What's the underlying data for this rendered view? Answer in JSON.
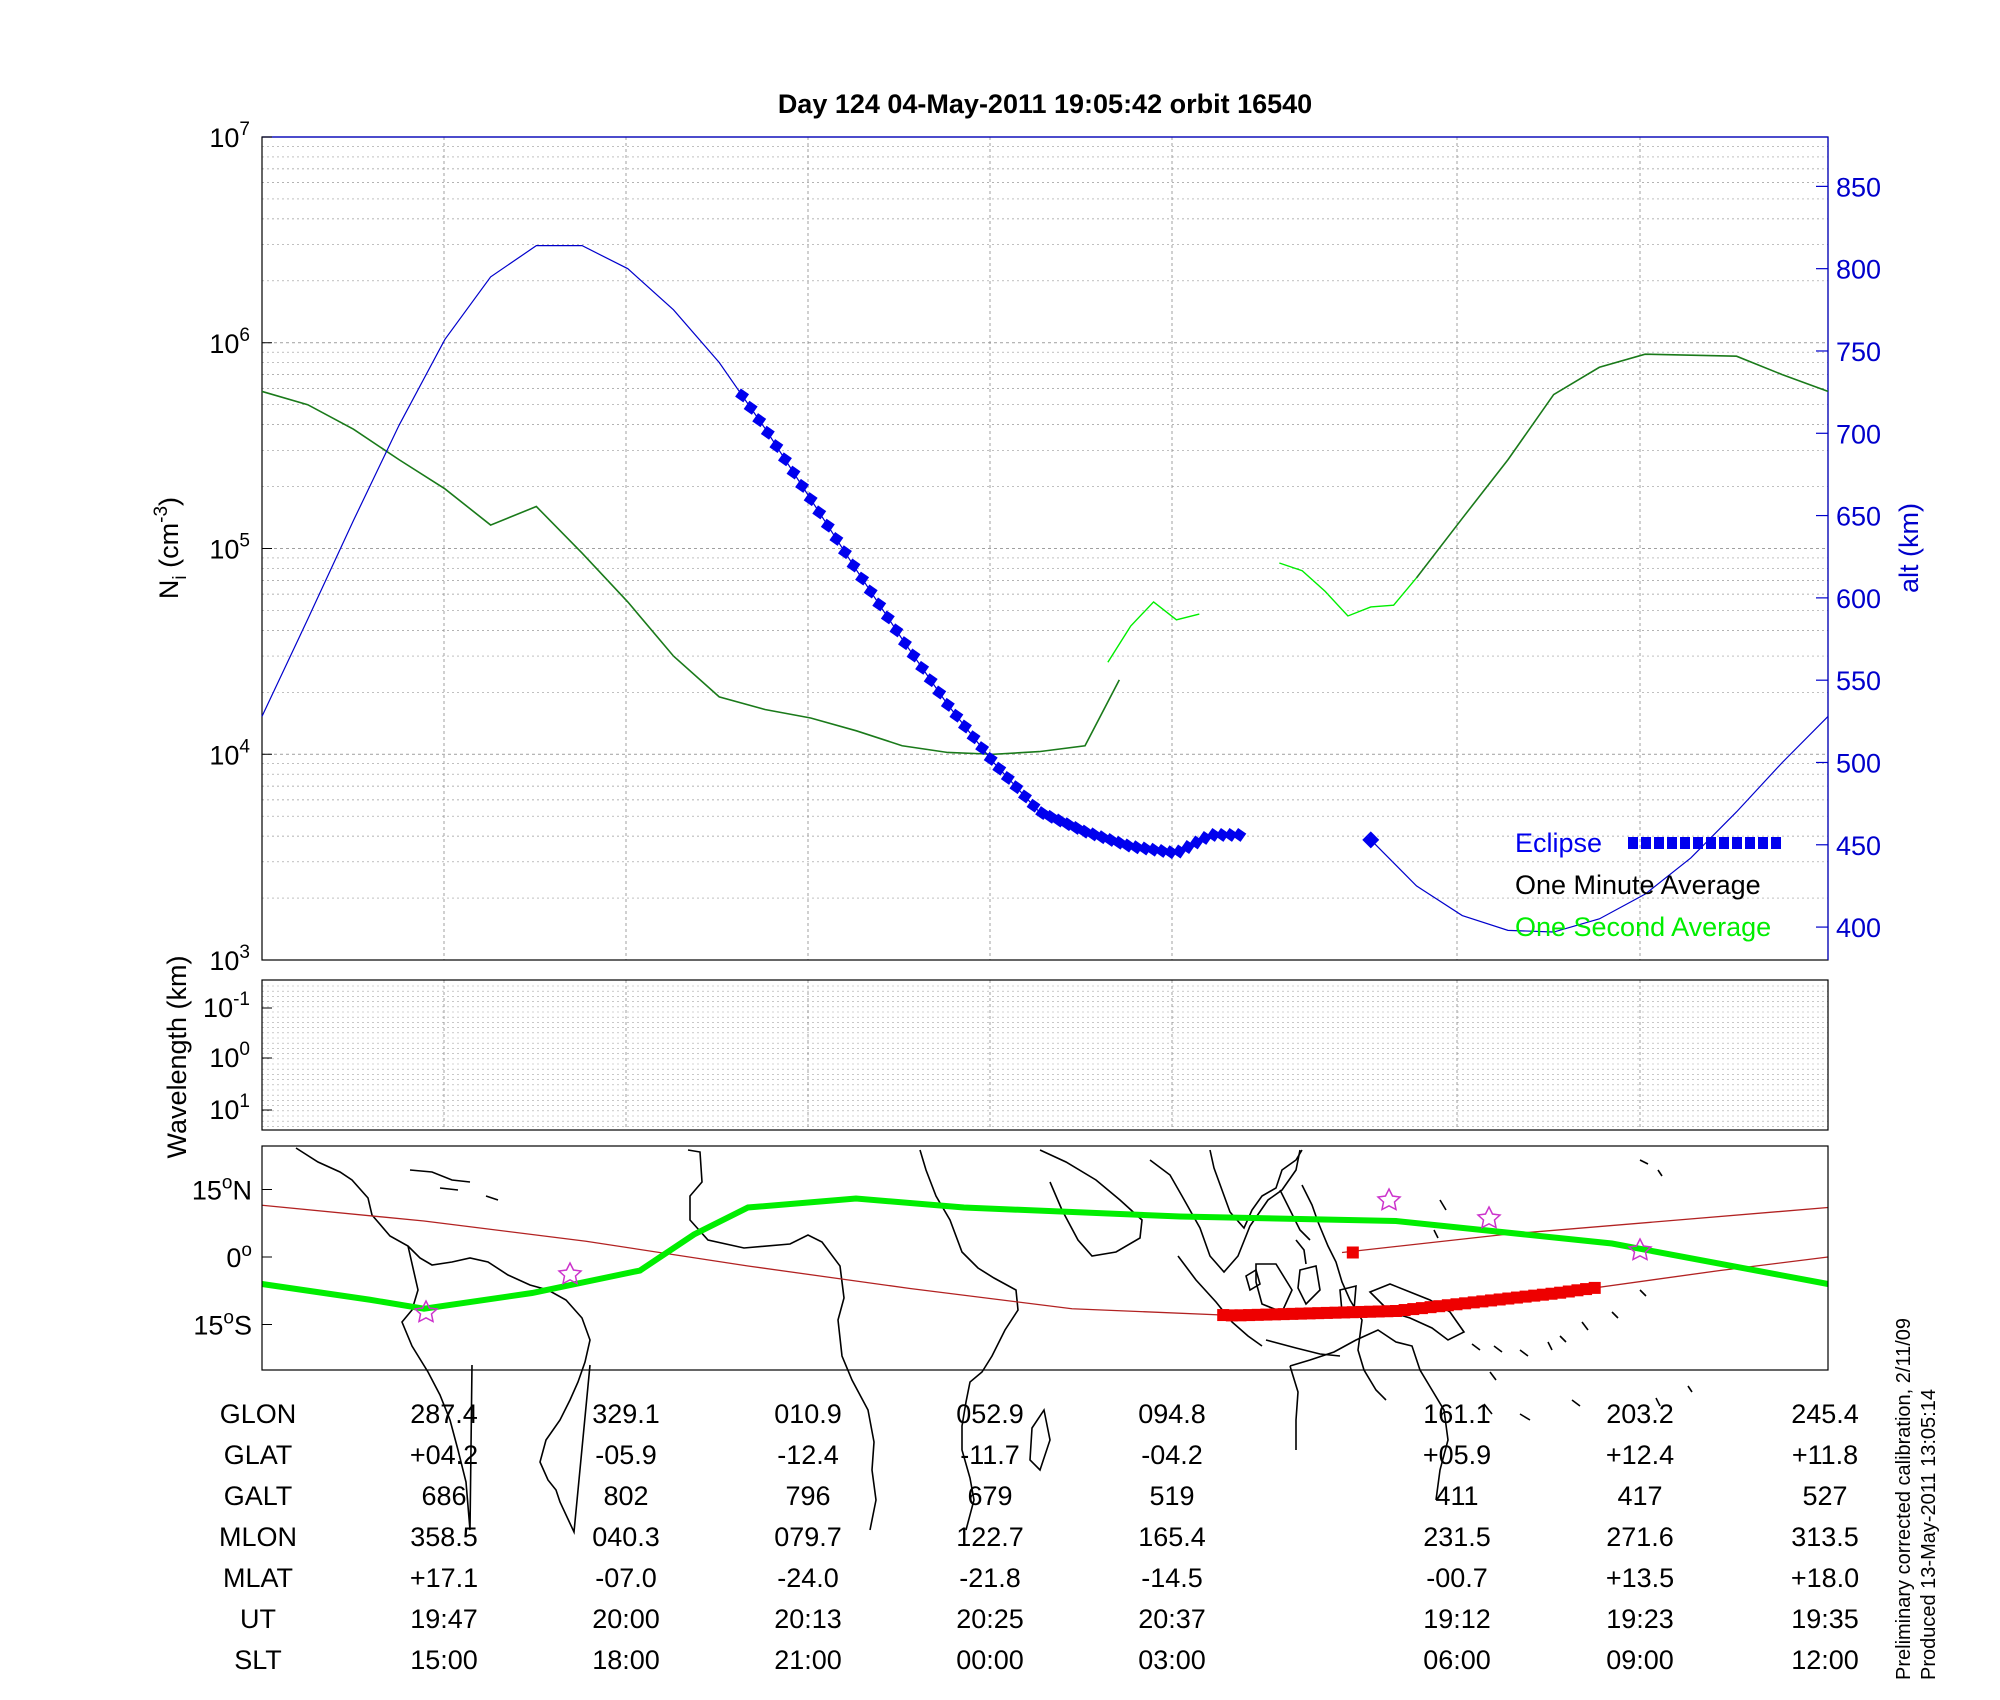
{
  "title": "Day 124  04-May-2011 19:05:42   orbit 16540",
  "colors": {
    "alt_axis": "#0000cc",
    "one_minute": "#1a7a1a",
    "one_second": "#00ee00",
    "eclipse": "#0000ee",
    "track": "#b22222",
    "eclipse_track": "#ee0000",
    "site_marker": "#cc33cc"
  },
  "chart_data": [
    {
      "type": "line",
      "panel": "ion density",
      "ylabel": "N_i (cm^-3)",
      "ylabel_parts": {
        "base": "N",
        "sub": "i",
        "unit_open": " (cm",
        "unit_exp": "-3",
        "unit_close": ")"
      },
      "y_scale": "log",
      "ylim": [
        1000,
        10000000
      ],
      "y_ticks": [
        {
          "base": "10",
          "exp": "3"
        },
        {
          "base": "10",
          "exp": "4"
        },
        {
          "base": "10",
          "exp": "5"
        },
        {
          "base": "10",
          "exp": "6"
        },
        {
          "base": "10",
          "exp": "7"
        }
      ],
      "y2label": "alt (km)",
      "y2lim": [
        380,
        880
      ],
      "y2_ticks": [
        "400",
        "450",
        "500",
        "550",
        "600",
        "650",
        "700",
        "750",
        "800",
        "850"
      ],
      "grid": true,
      "legend_position": "bottom-right",
      "series": [
        {
          "name": "One Minute Average",
          "x_utc_min": [
            0,
            4,
            8,
            12,
            16,
            20,
            24,
            28,
            32,
            36,
            40,
            44,
            48,
            52,
            56,
            60,
            64,
            68,
            72,
            75
          ],
          "y": [
            580000,
            500000,
            380000,
            270000,
            195000,
            130000,
            160000,
            95000,
            55000,
            30000,
            19000,
            16500,
            15000,
            13000,
            11000,
            10200,
            10000,
            10300,
            11000,
            23000
          ]
        },
        {
          "name": "One Second Average",
          "x_utc_min": [
            74,
            76,
            78,
            80,
            82
          ],
          "y": [
            28000,
            42000,
            55000,
            45000,
            48000
          ]
        },
        {
          "name": "One Second Average",
          "x_utc_min": [
            89,
            91,
            93,
            95,
            97,
            99,
            101
          ],
          "y": [
            85000,
            78000,
            62000,
            47000,
            52000,
            53000,
            72000
          ]
        },
        {
          "name": "One Minute Average",
          "x_utc_min": [
            101,
            105,
            109,
            113,
            117,
            121,
            125,
            129,
            133,
            137
          ],
          "y": [
            72000,
            140000,
            270000,
            560000,
            760000,
            880000,
            870000,
            860000,
            700000,
            580000
          ]
        },
        {
          "name": "alt (km)",
          "axis": "right",
          "x_utc_min": [
            0,
            4,
            8,
            12,
            16,
            20,
            24,
            28,
            32,
            36,
            40,
            44,
            48,
            52,
            56,
            60,
            64,
            68,
            72,
            76,
            80,
            83
          ],
          "y": [
            528,
            587,
            647,
            705,
            757,
            795,
            814,
            814,
            800,
            775,
            743,
            703,
            660,
            617,
            575,
            535,
            500,
            470,
            458,
            449,
            445,
            456
          ]
        },
        {
          "name": "alt (km)",
          "axis": "right",
          "x_utc_min": [
            97,
            101,
            105,
            109,
            113,
            117,
            121,
            125,
            129,
            133,
            137
          ],
          "y": [
            453,
            425,
            407,
            398,
            397,
            405,
            420,
            442,
            470,
            500,
            528
          ]
        }
      ],
      "eclipse": {
        "from_utc_min": 42,
        "to_utc_min": 86
      },
      "legend": [
        {
          "label": "Eclipse",
          "style": "eclipse"
        },
        {
          "label": "One Minute Average",
          "style": "minute"
        },
        {
          "label": "One Second Average",
          "style": "second"
        }
      ]
    },
    {
      "type": "heatmap",
      "panel": "wavelength",
      "ylabel": "Wavelength (km)",
      "y_scale": "log",
      "y_ticks": [
        {
          "base": "10",
          "exp": "-1"
        },
        {
          "base": "10",
          "exp": "0"
        },
        {
          "base": "10",
          "exp": "1"
        }
      ],
      "grid": true,
      "values": []
    },
    {
      "type": "line",
      "panel": "ground track map",
      "y_ticks": [
        {
          "val": "15",
          "deg": "o",
          "hem": "N"
        },
        {
          "val": "0",
          "deg": "o",
          "hem": ""
        },
        {
          "val": "15",
          "deg": "o",
          "hem": "S"
        }
      ],
      "ylim": [
        -25,
        25
      ],
      "xlim": [
        255,
        400
      ],
      "series": [
        {
          "name": "Satellite track",
          "lon": [
            255,
            270,
            285,
            300,
            315,
            330,
            345,
            360,
            375,
            390,
            400
          ],
          "lat": [
            11.5,
            8,
            3.5,
            -2,
            -7,
            -11.5,
            -13,
            -12,
            -8,
            -3,
            0
          ]
        },
        {
          "name": "Satellite track",
          "lon": [
            355,
            370,
            385,
            400
          ],
          "lat": [
            1,
            5,
            8,
            11
          ]
        },
        {
          "name": "Magnetic equator",
          "lon": [
            255,
            265,
            270,
            280,
            290,
            295,
            300,
            310,
            320,
            340,
            360,
            380,
            400
          ],
          "lat": [
            -6,
            -9.5,
            -11.5,
            -8,
            -3,
            5,
            11,
            13,
            11,
            9,
            8,
            3,
            -6
          ]
        }
      ],
      "eclipse_track": {
        "from_lon": 344,
        "to_lon": 379
      },
      "eclipse_track_after": {
        "from_lon": 356,
        "to_lon": 357
      }
    }
  ],
  "table": {
    "row_labels": [
      "GLON",
      "GLAT",
      "GALT",
      "MLON",
      "MLAT",
      "UT",
      "SLT"
    ],
    "columns": [
      [
        "287.4",
        "+04.2",
        "686",
        "358.5",
        "+17.1",
        "19:47",
        "15:00"
      ],
      [
        "329.1",
        "-05.9",
        "802",
        "040.3",
        "-07.0",
        "20:00",
        "18:00"
      ],
      [
        "010.9",
        "-12.4",
        "796",
        "079.7",
        "-24.0",
        "20:13",
        "21:00"
      ],
      [
        "052.9",
        "-11.7",
        "679",
        "122.7",
        "-21.8",
        "20:25",
        "00:00"
      ],
      [
        "094.8",
        "-04.2",
        "519",
        "165.4",
        "-14.5",
        "20:37",
        "03:00"
      ],
      [
        "161.1",
        "+05.9",
        "411",
        "231.5",
        "-00.7",
        "19:12",
        "06:00"
      ],
      [
        "203.2",
        "+12.4",
        "417",
        "271.6",
        "+13.5",
        "19:23",
        "09:00"
      ],
      [
        "245.4",
        "+11.8",
        "527",
        "313.5",
        "+18.0",
        "19:35",
        "12:00"
      ]
    ]
  },
  "footnote": {
    "line1": "Preliminary corrected calibration, 2/11/09",
    "line2": "Produced 13-May-2011 13:05:14"
  }
}
